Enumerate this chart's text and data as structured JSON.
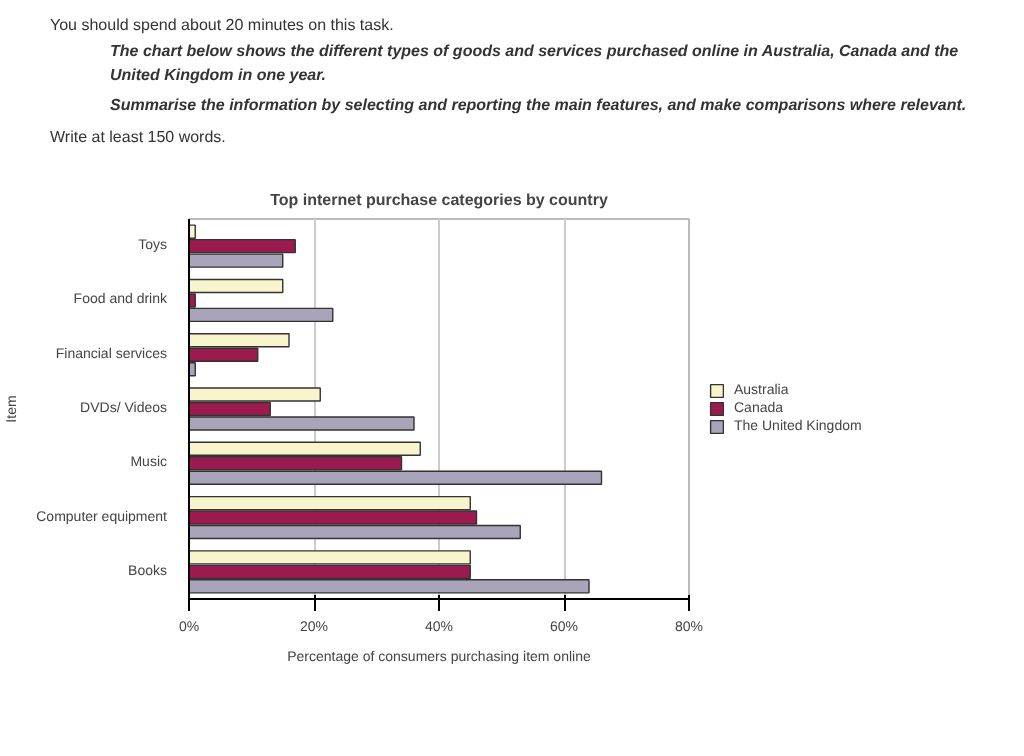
{
  "chart_data": {
    "type": "bar",
    "orientation": "horizontal",
    "title": "Top internet purchase categories by country",
    "annotations": [
      "You should spend about 20 minutes on this task.",
      "The chart below shows the different types of goods and services purchased online in Australia, Canada and the United Kingdom in one year.",
      "Summarise the information by selecting and reporting the main features, and make comparisons where relevant.",
      "Write at least 150 words."
    ],
    "xlabel": "Percentage of consumers purchasing item online",
    "ylabel": "Item",
    "categories": [
      "Toys",
      "Food and drink",
      "Financial services",
      "DVDs/ Videos",
      "Music",
      "Computer equipment",
      "Books"
    ],
    "series": [
      {
        "name": "Australia",
        "color": "#f8f4cc",
        "values": [
          1,
          15,
          16,
          21,
          37,
          45,
          45
        ]
      },
      {
        "name": "Canada",
        "color": "#9b1b4f",
        "values": [
          17,
          1,
          11,
          13,
          34,
          46,
          45
        ]
      },
      {
        "name": "The United Kingdom",
        "color": "#aaa4ba",
        "values": [
          15,
          23,
          1,
          36,
          66,
          53,
          64
        ]
      }
    ],
    "xlim": [
      0,
      80
    ],
    "xticks": [
      {
        "value": 0,
        "label": "0%"
      },
      {
        "value": 20,
        "label": "20%"
      },
      {
        "value": 40,
        "label": "40%"
      },
      {
        "value": 60,
        "label": "60%"
      },
      {
        "value": 80,
        "label": "80%"
      }
    ],
    "grid": "x",
    "legend": "right"
  }
}
